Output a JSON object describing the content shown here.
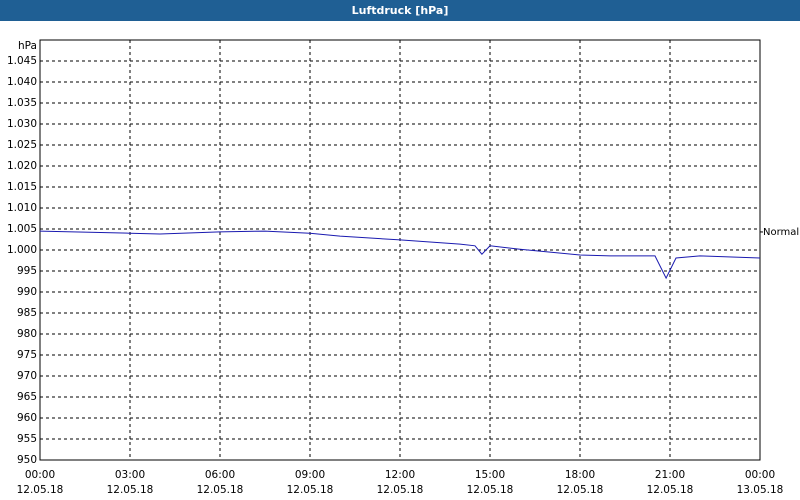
{
  "chart_data": {
    "type": "line",
    "title": "Luftdruck [hPa]",
    "y_label": "hPa",
    "x": [
      0,
      3,
      4,
      6,
      7.5,
      9,
      10,
      12,
      14,
      14.5,
      14.73,
      15,
      16,
      18,
      19,
      20.5,
      20.87,
      21.2,
      22,
      24
    ],
    "series": [
      {
        "name": "Luftdruck",
        "color": "#1a1ab0",
        "values": [
          1004.5,
          1004.0,
          1003.8,
          1004.3,
          1004.5,
          1004.0,
          1003.3,
          1002.4,
          1001.4,
          1001.0,
          999.0,
          1001.0,
          1000.2,
          998.8,
          998.6,
          998.6,
          993.3,
          998.1,
          998.6,
          998.1
        ]
      }
    ],
    "xlim": [
      0,
      24
    ],
    "xticks": [
      {
        "value": 0,
        "label": "00:00"
      },
      {
        "value": 3,
        "label": "03:00"
      },
      {
        "value": 6,
        "label": "06:00"
      },
      {
        "value": 9,
        "label": "09:00"
      },
      {
        "value": 12,
        "label": "12:00"
      },
      {
        "value": 15,
        "label": "15:00"
      },
      {
        "value": 18,
        "label": "18:00"
      },
      {
        "value": 21,
        "label": "21:00"
      },
      {
        "value": 24,
        "label": "00:00"
      }
    ],
    "xtick_dates": [
      "12.05.18",
      "12.05.18",
      "12.05.18",
      "12.05.18",
      "12.05.18",
      "12.05.18",
      "12.05.18",
      "12.05.18",
      "13.05.18"
    ],
    "ylim": [
      950,
      1050
    ],
    "yticks": [
      950,
      955,
      960,
      965,
      970,
      975,
      980,
      985,
      990,
      995,
      {
        "value": 1000,
        "label": "1.000"
      },
      {
        "value": 1005,
        "label": "1.005"
      },
      {
        "value": 1010,
        "label": "1.010"
      },
      {
        "value": 1015,
        "label": "1.015"
      },
      {
        "value": 1020,
        "label": "1.020"
      },
      {
        "value": 1025,
        "label": "1.025"
      },
      {
        "value": 1030,
        "label": "1.030"
      },
      {
        "value": 1035,
        "label": "1.035"
      },
      {
        "value": 1040,
        "label": "1.040"
      },
      {
        "value": 1045,
        "label": "1.045"
      }
    ],
    "reference": {
      "label": "Normal",
      "value": 1004.3
    },
    "grid": true
  }
}
